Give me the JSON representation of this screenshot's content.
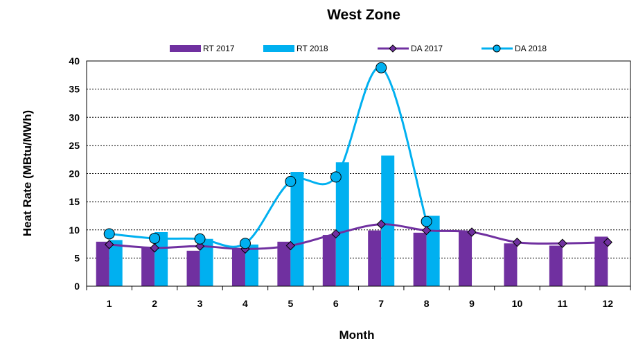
{
  "chart_data": {
    "type": "bar",
    "title": "West  Zone",
    "xlabel": "Month",
    "ylabel": "Heat Rate (MBtu/MWh)",
    "categories": [
      "1",
      "2",
      "3",
      "4",
      "5",
      "6",
      "7",
      "8",
      "9",
      "10",
      "11",
      "12"
    ],
    "ylim": [
      0,
      40
    ],
    "yticks": [
      0,
      5,
      10,
      15,
      20,
      25,
      30,
      35,
      40
    ],
    "grid": "horizontal dashed",
    "legend_position": "top",
    "series": [
      {
        "name": "RT 2017",
        "kind": "bar",
        "color": "#7030A0",
        "values": [
          7.9,
          6.9,
          6.3,
          6.6,
          7.9,
          9.1,
          9.9,
          9.5,
          9.6,
          7.6,
          7.2,
          8.8
        ]
      },
      {
        "name": "RT 2018",
        "kind": "bar",
        "color": "#00B0F0",
        "values": [
          8.2,
          9.6,
          8.4,
          7.4,
          20.3,
          22.0,
          23.2,
          12.5,
          null,
          null,
          null,
          null
        ]
      },
      {
        "name": "DA 2017",
        "kind": "line",
        "marker": "diamond",
        "color": "#7030A0",
        "values": [
          7.4,
          6.8,
          7.1,
          6.6,
          7.2,
          9.3,
          11.0,
          9.9,
          9.6,
          7.8,
          7.6,
          7.8
        ]
      },
      {
        "name": "DA 2018",
        "kind": "line",
        "marker": "circle",
        "color": "#00B0F0",
        "values": [
          9.3,
          8.5,
          8.4,
          7.6,
          18.6,
          19.4,
          38.8,
          11.5,
          null,
          null,
          null,
          null
        ]
      }
    ]
  }
}
